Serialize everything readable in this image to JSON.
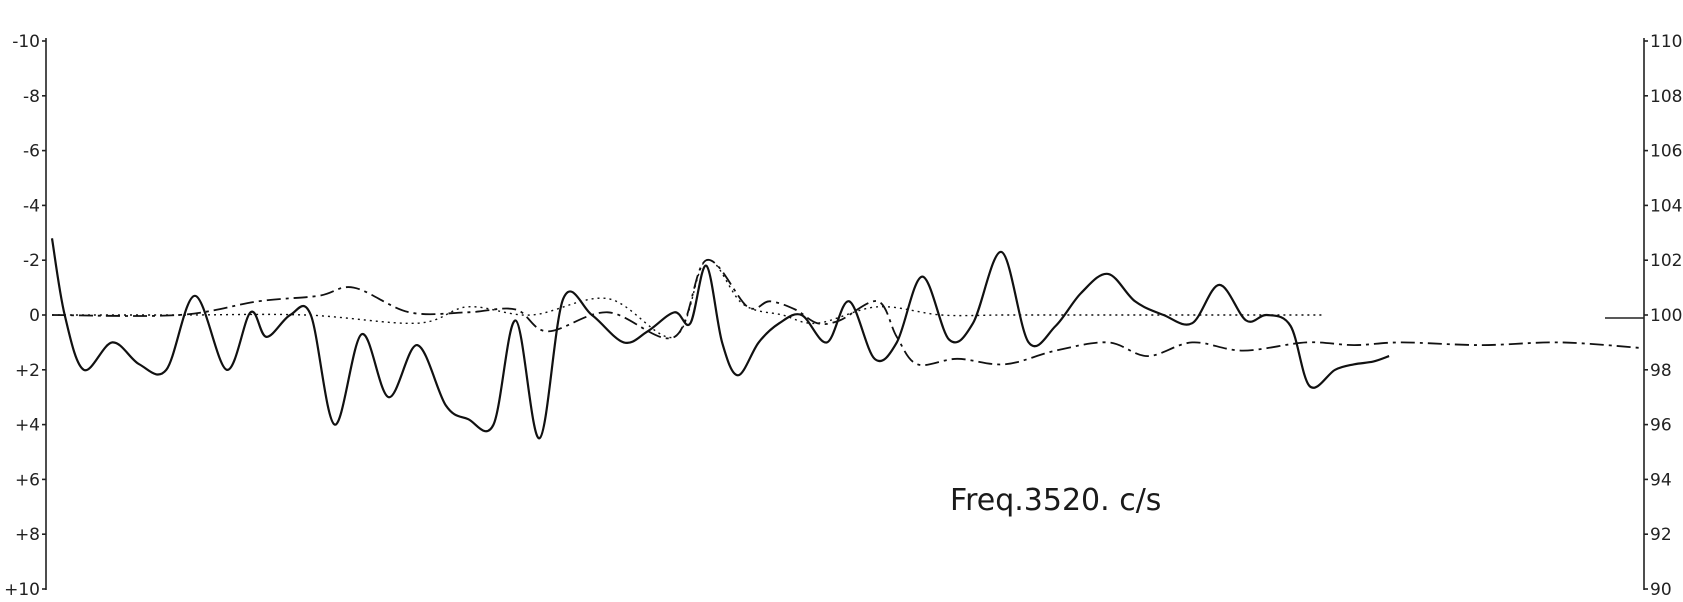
{
  "chart_data": {
    "type": "line",
    "title": "",
    "annotation": "Freq.3520. c/s",
    "left_axis": {
      "ticks": [
        "-10",
        "-8",
        "-6",
        "-4",
        "-2",
        "0",
        "+2",
        "+4",
        "+6",
        "+8",
        "+10"
      ],
      "range": [
        -10,
        10
      ],
      "inverted": true
    },
    "right_axis": {
      "ticks": [
        "110",
        "108",
        "106",
        "104",
        "102",
        "100",
        "98",
        "96",
        "94",
        "92",
        "90"
      ],
      "range": [
        90,
        110
      ]
    },
    "grid": false,
    "x_range": [
      0,
      1000
    ],
    "series": [
      {
        "style": "solid",
        "points": [
          [
            0,
            -2.8
          ],
          [
            8,
            0
          ],
          [
            20,
            2
          ],
          [
            38,
            1.0
          ],
          [
            55,
            1.8
          ],
          [
            72,
            2.0
          ],
          [
            90,
            -0.7
          ],
          [
            110,
            2.0
          ],
          [
            125,
            -0.1
          ],
          [
            135,
            0.8
          ],
          [
            150,
            0.0
          ],
          [
            163,
            0.0
          ],
          [
            178,
            4.0
          ],
          [
            195,
            0.7
          ],
          [
            212,
            3.0
          ],
          [
            230,
            1.1
          ],
          [
            248,
            3.3
          ],
          [
            262,
            3.8
          ],
          [
            278,
            4.0
          ],
          [
            292,
            0.2
          ],
          [
            307,
            4.5
          ],
          [
            322,
            -0.6
          ],
          [
            340,
            0.0
          ],
          [
            360,
            1.0
          ],
          [
            375,
            0.6
          ],
          [
            392,
            -0.1
          ],
          [
            402,
            0.3
          ],
          [
            412,
            -1.8
          ],
          [
            422,
            1.0
          ],
          [
            432,
            2.2
          ],
          [
            445,
            1.0
          ],
          [
            458,
            0.3
          ],
          [
            472,
            0.0
          ],
          [
            488,
            1.0
          ],
          [
            502,
            -0.5
          ],
          [
            518,
            1.6
          ],
          [
            532,
            1.0
          ],
          [
            548,
            -1.4
          ],
          [
            565,
            0.9
          ],
          [
            580,
            0.3
          ],
          [
            598,
            -2.3
          ],
          [
            615,
            1.0
          ],
          [
            632,
            0.4
          ],
          [
            648,
            -0.8
          ],
          [
            665,
            -1.5
          ],
          [
            682,
            -0.5
          ],
          [
            700,
            0.0
          ],
          [
            718,
            0.3
          ],
          [
            735,
            -1.1
          ],
          [
            752,
            0.2
          ],
          [
            765,
            0.0
          ],
          [
            780,
            0.4
          ],
          [
            792,
            2.6
          ],
          [
            808,
            2.0
          ],
          [
            820,
            1.8
          ],
          [
            832,
            1.7
          ],
          [
            842,
            1.5
          ]
        ]
      },
      {
        "style": "dash-dot",
        "points": [
          [
            0,
            0
          ],
          [
            80,
            0
          ],
          [
            130,
            -0.5
          ],
          [
            168,
            -0.7
          ],
          [
            190,
            -1.0
          ],
          [
            225,
            -0.1
          ],
          [
            262,
            -0.1
          ],
          [
            292,
            -0.2
          ],
          [
            312,
            0.6
          ],
          [
            350,
            -0.1
          ],
          [
            392,
            0.8
          ],
          [
            412,
            -2.0
          ],
          [
            438,
            -0.3
          ],
          [
            452,
            -0.5
          ],
          [
            468,
            -0.2
          ],
          [
            482,
            0.3
          ],
          [
            496,
            0.2
          ],
          [
            520,
            -0.5
          ],
          [
            532,
            0.8
          ],
          [
            545,
            1.8
          ],
          [
            570,
            1.6
          ],
          [
            600,
            1.8
          ],
          [
            632,
            1.3
          ],
          [
            665,
            1.0
          ],
          [
            690,
            1.5
          ],
          [
            718,
            1.0
          ],
          [
            750,
            1.3
          ],
          [
            790,
            1.0
          ],
          [
            820,
            1.1
          ],
          [
            850,
            1.0
          ],
          [
            900,
            1.1
          ],
          [
            950,
            1.0
          ],
          [
            1000,
            1.2
          ]
        ]
      },
      {
        "style": "dotted",
        "points": [
          [
            0,
            0
          ],
          [
            80,
            0
          ],
          [
            160,
            0
          ],
          [
            230,
            0.3
          ],
          [
            262,
            -0.3
          ],
          [
            302,
            0.0
          ],
          [
            350,
            -0.6
          ],
          [
            392,
            0.8
          ],
          [
            412,
            -2.0
          ],
          [
            435,
            -0.4
          ],
          [
            460,
            0.0
          ],
          [
            482,
            0.3
          ],
          [
            520,
            -0.3
          ],
          [
            560,
            0.0
          ],
          [
            600,
            0.0
          ],
          [
            650,
            0.0
          ],
          [
            700,
            0.0
          ],
          [
            750,
            0.0
          ],
          [
            800,
            0.0
          ]
        ]
      }
    ]
  }
}
